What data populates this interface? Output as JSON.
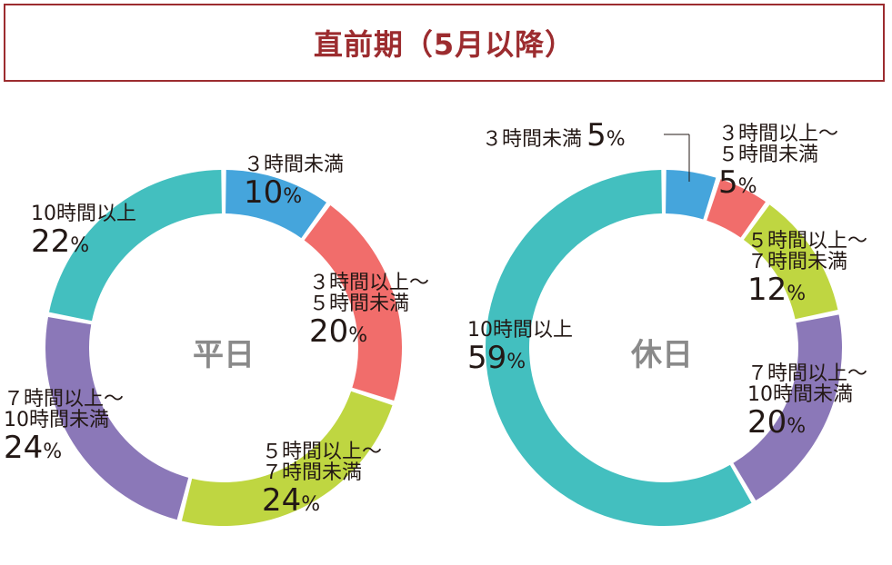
{
  "title": "直前期（5月以降）",
  "percent_sign": "%",
  "chart_data": [
    {
      "type": "pie",
      "title": "平日",
      "categories": [
        "3時間未満",
        "3時間以上～5時間未満",
        "5時間以上～7時間未満",
        "7時間以上～10時間未満",
        "10時間以上"
      ],
      "label_lines": [
        [
          "３時間未満"
        ],
        [
          "３時間以上～",
          "５時間未満"
        ],
        [
          "５時間以上～",
          "７時間未満"
        ],
        [
          "７時間以上～",
          "10時間未満"
        ],
        [
          "10時間以上"
        ]
      ],
      "values": [
        10,
        20,
        24,
        24,
        22
      ],
      "colors": [
        "#45a5dc",
        "#f16d6b",
        "#bfd641",
        "#8b78b8",
        "#43bfbf"
      ]
    },
    {
      "type": "pie",
      "title": "休日",
      "categories": [
        "3時間未満",
        "3時間以上～5時間未満",
        "5時間以上～7時間未満",
        "7時間以上～10時間未満",
        "10時間以上"
      ],
      "label_lines": [
        [
          "３時間未満"
        ],
        [
          "３時間以上～",
          "５時間未満"
        ],
        [
          "５時間以上～",
          "７時間未満"
        ],
        [
          "７時間以上～",
          "10時間未満"
        ],
        [
          "10時間以上"
        ]
      ],
      "values": [
        5,
        5,
        12,
        20,
        59
      ],
      "colors": [
        "#45a5dc",
        "#f16d6b",
        "#bfd641",
        "#8b78b8",
        "#43bfbf"
      ]
    }
  ]
}
